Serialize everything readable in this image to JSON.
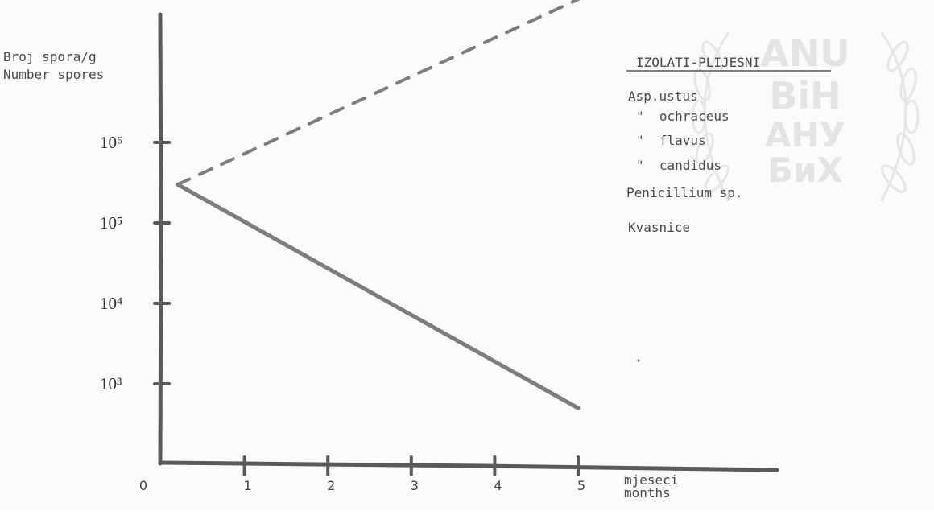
{
  "chart_data": {
    "type": "line",
    "ylabel": [
      "Broj spora/g",
      "Number spores"
    ],
    "xlabel": [
      "mjeseci",
      "months"
    ],
    "x_ticks": [
      "0",
      "1",
      "2",
      "3",
      "4",
      "5"
    ],
    "y_ticks": [
      "10³",
      "10⁴",
      "10⁵",
      "10⁶"
    ],
    "y_scale": "log",
    "xlim": [
      0,
      5
    ],
    "ylim": [
      100,
      100000000
    ],
    "series": [
      {
        "style": "dashed",
        "x": [
          0.2,
          5
        ],
        "y": [
          300000,
          60000000
        ]
      },
      {
        "style": "solid",
        "x": [
          0.2,
          5
        ],
        "y": [
          300000,
          500
        ]
      }
    ],
    "legend": {
      "title": "IZOLATI-PLIJESNI",
      "items": [
        "Asp.ustus",
        "\"  ochraceus",
        "\"  flavus",
        "\"  candidus",
        "Penicillium sp.",
        "Kvasnice"
      ],
      "position": "top-right"
    },
    "grid": false
  },
  "watermark": {
    "lines": [
      "ANU",
      "BiH",
      "АНУ",
      "БиХ"
    ],
    "color": "#e4e4e4"
  }
}
